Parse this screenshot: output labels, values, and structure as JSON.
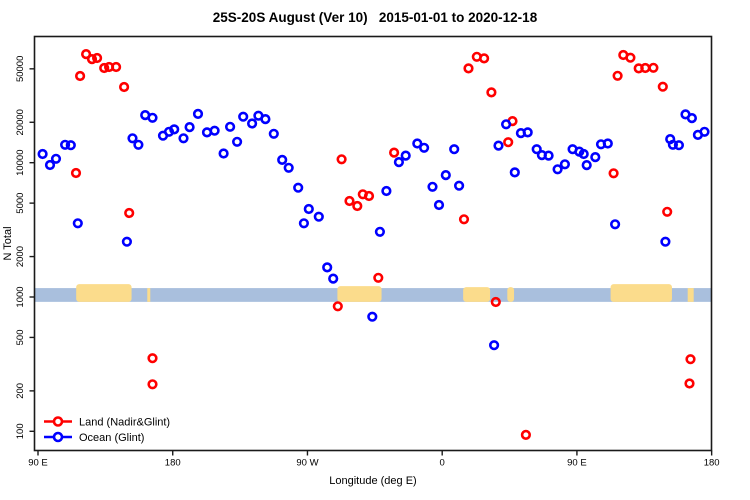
{
  "title": "25S-20S August (Ver 10)   2015-01-01 to 2020-12-18",
  "chart_data": {
    "type": "scatter",
    "title": "25S-20S August (Ver 10)   2015-01-01 to 2020-12-18",
    "xlabel": "Longitude (deg E)",
    "ylabel": "N Total",
    "y_scale": "log",
    "ylim": [
      71,
      88000
    ],
    "x_axis": {
      "range": [
        87,
        540
      ],
      "ticks": [
        90,
        180,
        270,
        360,
        450,
        540
      ],
      "tick_labels": [
        "90 E",
        "180",
        "90 W",
        "0",
        "90 E",
        "180"
      ]
    },
    "y_axis": {
      "ticks": [
        100,
        200,
        500,
        1000,
        2000,
        5000,
        10000,
        20000,
        50000
      ],
      "tick_labels": [
        "100",
        "200",
        "500",
        "1000",
        "2000",
        "5000",
        "10000",
        "20000",
        "50000"
      ]
    },
    "grid": false,
    "legend_position": "bottom-left",
    "series": [
      {
        "name": "Land (Nadir&Glint)",
        "color": "#ff0000",
        "marker": "open-circle",
        "points": [
          [
            122.1,
            64400
          ],
          [
            126.1,
            59100
          ],
          [
            129.5,
            60200
          ],
          [
            134.2,
            50700
          ],
          [
            137.5,
            51600
          ],
          [
            142.2,
            51600
          ],
          [
            118.1,
            44200
          ],
          [
            147.5,
            36600
          ],
          [
            115.4,
            8380
          ],
          [
            150.9,
            4220
          ],
          [
            166.5,
            350
          ],
          [
            166.5,
            224
          ],
          [
            292.8,
            10600
          ],
          [
            298.1,
            5190
          ],
          [
            303.3,
            4760
          ],
          [
            307.0,
            5820
          ],
          [
            311.1,
            5650
          ],
          [
            317.3,
            1390
          ],
          [
            290.3,
            852
          ],
          [
            327.9,
            11900
          ],
          [
            377.6,
            50400
          ],
          [
            383.1,
            61500
          ],
          [
            388.0,
            59800
          ],
          [
            392.9,
            33400
          ],
          [
            407.0,
            20400
          ],
          [
            404.1,
            14200
          ],
          [
            374.6,
            3790
          ],
          [
            395.8,
            918
          ],
          [
            415.9,
            94
          ],
          [
            481.0,
            63400
          ],
          [
            485.7,
            60500
          ],
          [
            491.3,
            50400
          ],
          [
            495.7,
            50700
          ],
          [
            501.1,
            50900
          ],
          [
            477.2,
            44400
          ],
          [
            507.4,
            36800
          ],
          [
            474.5,
            8340
          ],
          [
            510.3,
            4310
          ],
          [
            525.9,
            344
          ],
          [
            525.2,
            227
          ]
        ]
      },
      {
        "name": "Ocean (Glint)",
        "color": "#0000ff",
        "marker": "open-circle",
        "points": [
          [
            93.1,
            11600
          ],
          [
            98.0,
            9610
          ],
          [
            102.0,
            10700
          ],
          [
            108.1,
            13600
          ],
          [
            111.9,
            13500
          ],
          [
            116.6,
            3540
          ],
          [
            149.4,
            2580
          ],
          [
            153.1,
            15200
          ],
          [
            157.1,
            13600
          ],
          [
            161.6,
            22600
          ],
          [
            166.5,
            21600
          ],
          [
            173.5,
            15900
          ],
          [
            177.5,
            17000
          ],
          [
            181.0,
            17700
          ],
          [
            187.2,
            15200
          ],
          [
            191.3,
            18400
          ],
          [
            196.9,
            23100
          ],
          [
            202.9,
            16800
          ],
          [
            208.0,
            17300
          ],
          [
            218.3,
            18500
          ],
          [
            227.1,
            22000
          ],
          [
            233.0,
            19600
          ],
          [
            237.2,
            22400
          ],
          [
            241.9,
            21100
          ],
          [
            223.0,
            14300
          ],
          [
            214.0,
            11700
          ],
          [
            247.5,
            16400
          ],
          [
            253.1,
            10500
          ],
          [
            257.5,
            9170
          ],
          [
            263.8,
            6510
          ],
          [
            267.6,
            3540
          ],
          [
            270.9,
            4520
          ],
          [
            277.6,
            3960
          ],
          [
            283.2,
            1660
          ],
          [
            287.2,
            1370
          ],
          [
            313.3,
            713
          ],
          [
            322.7,
            6160
          ],
          [
            318.4,
            3060
          ],
          [
            331.1,
            10100
          ],
          [
            335.6,
            11300
          ],
          [
            343.4,
            13900
          ],
          [
            347.9,
            12900
          ],
          [
            353.5,
            6620
          ],
          [
            362.4,
            8090
          ],
          [
            368.0,
            12600
          ],
          [
            371.3,
            6740
          ],
          [
            357.9,
            4840
          ],
          [
            402.7,
            19300
          ],
          [
            412.6,
            16600
          ],
          [
            417.1,
            16800
          ],
          [
            397.6,
            13400
          ],
          [
            423.1,
            12600
          ],
          [
            426.6,
            11400
          ],
          [
            431.1,
            11300
          ],
          [
            408.5,
            8470
          ],
          [
            394.7,
            438
          ],
          [
            437.1,
            8930
          ],
          [
            442.0,
            9730
          ],
          [
            447.1,
            12600
          ],
          [
            451.6,
            12100
          ],
          [
            454.5,
            11600
          ],
          [
            456.5,
            9600
          ],
          [
            462.3,
            11000
          ],
          [
            466.1,
            13700
          ],
          [
            470.6,
            13900
          ],
          [
            475.5,
            3480
          ],
          [
            509.1,
            2580
          ],
          [
            512.3,
            15000
          ],
          [
            514.1,
            13600
          ],
          [
            518.1,
            13500
          ],
          [
            522.5,
            22900
          ],
          [
            526.8,
            21500
          ],
          [
            530.8,
            16100
          ],
          [
            535.2,
            17000
          ]
        ]
      }
    ],
    "map_band": {
      "description": "land-ocean strip drawn across the plot near N=1000",
      "value_top": 1165,
      "value_bottom": 920,
      "ocean_color": "#a9bfdd",
      "land_color": "#fbdc8c",
      "land_segments_lon": [
        [
          115.5,
          152.5,
          4
        ],
        [
          163.0,
          165.0,
          0
        ],
        [
          290.0,
          319.5,
          2
        ],
        [
          374.0,
          392.0,
          1
        ],
        [
          403.5,
          408.0,
          1
        ],
        [
          472.5,
          513.5,
          4
        ],
        [
          524.0,
          528.0,
          0
        ]
      ]
    },
    "legend": {
      "items": [
        {
          "label": "Land (Nadir&Glint)",
          "color": "#ff0000"
        },
        {
          "label": "Ocean (Glint)",
          "color": "#0000ff"
        }
      ]
    }
  }
}
